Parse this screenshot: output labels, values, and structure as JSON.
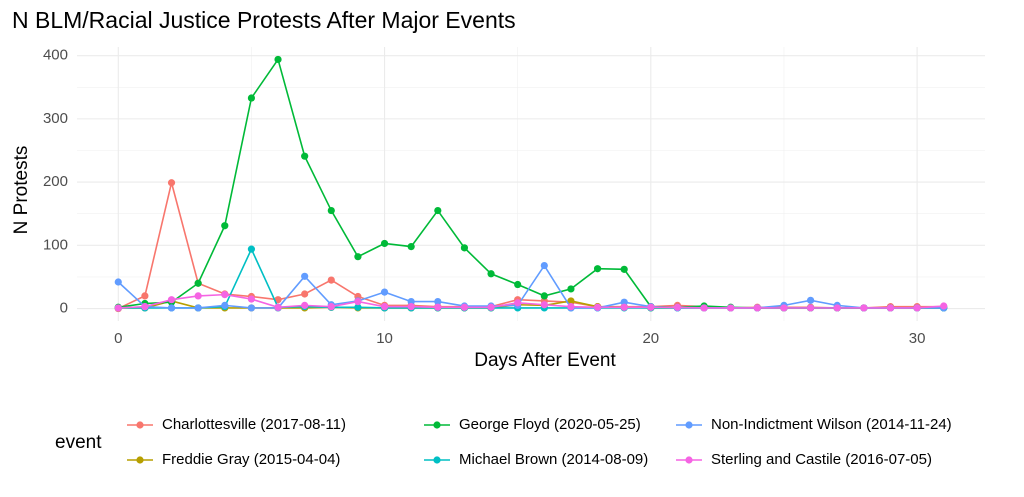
{
  "chart_data": {
    "type": "line",
    "title": "N BLM/Racial Justice Protests After Major Events",
    "xlabel": "Days After Event",
    "ylabel": "N Protests",
    "legend_title": "event",
    "x": [
      0,
      1,
      2,
      3,
      4,
      5,
      6,
      7,
      8,
      9,
      10,
      11,
      12,
      13,
      14,
      15,
      16,
      17,
      18,
      19,
      20,
      21,
      22,
      23,
      24,
      25,
      26,
      27,
      28,
      29,
      30,
      31
    ],
    "series": [
      {
        "name": "Charlottesville (2017-08-11)",
        "color": "#F8766D",
        "values": [
          0,
          20,
          199,
          40,
          23,
          19,
          14,
          23,
          45,
          19,
          5,
          5,
          3,
          3,
          3,
          14,
          12,
          10,
          3,
          3,
          3,
          5,
          3,
          1,
          2,
          2,
          2,
          1,
          1,
          3,
          3,
          3
        ]
      },
      {
        "name": "Freddie Gray (2015-04-04)",
        "color": "#B79F00",
        "values": [
          1,
          1,
          12,
          1,
          1,
          1,
          1,
          1,
          2,
          1,
          1,
          1,
          1,
          1,
          1,
          6,
          5,
          12,
          3,
          2,
          1,
          1,
          1,
          1,
          1,
          1,
          1,
          1,
          1,
          1,
          1,
          1
        ]
      },
      {
        "name": "George Floyd (2020-05-25)",
        "color": "#00BA38",
        "values": [
          2,
          8,
          10,
          40,
          131,
          333,
          394,
          241,
          155,
          82,
          103,
          98,
          155,
          96,
          55,
          38,
          20,
          31,
          63,
          62,
          3,
          2,
          4,
          2,
          1,
          1,
          1,
          1,
          1,
          1,
          1,
          1
        ]
      },
      {
        "name": "Michael Brown (2014-08-09)",
        "color": "#00BFC4",
        "values": [
          1,
          1,
          1,
          1,
          3,
          94,
          2,
          3,
          2,
          2,
          1,
          1,
          1,
          1,
          1,
          1,
          1,
          1,
          1,
          1,
          1,
          1,
          1,
          1,
          1,
          1,
          1,
          1,
          1,
          1,
          1,
          1
        ]
      },
      {
        "name": "Non-Indictment Wilson (2014-11-24)",
        "color": "#619CFF",
        "values": [
          42,
          3,
          1,
          1,
          5,
          1,
          1,
          51,
          6,
          12,
          26,
          11,
          11,
          4,
          4,
          5,
          68,
          1,
          1,
          10,
          3,
          1,
          1,
          1,
          1,
          5,
          13,
          5,
          1,
          1,
          1,
          1
        ]
      },
      {
        "name": "Sterling and Castile (2016-07-05)",
        "color": "#F564E3",
        "values": [
          1,
          3,
          14,
          20,
          22,
          15,
          2,
          5,
          3,
          11,
          3,
          3,
          2,
          2,
          2,
          9,
          6,
          3,
          2,
          2,
          2,
          2,
          1,
          1,
          1,
          1,
          1,
          1,
          1,
          1,
          1,
          4
        ]
      }
    ],
    "xlim": [
      -1.55,
      32.55
    ],
    "xticks": [
      0,
      10,
      20,
      30
    ],
    "ylim": [
      -19.7,
      413.7
    ],
    "yticks": [
      0,
      100,
      200,
      300,
      400
    ],
    "grid": true
  }
}
